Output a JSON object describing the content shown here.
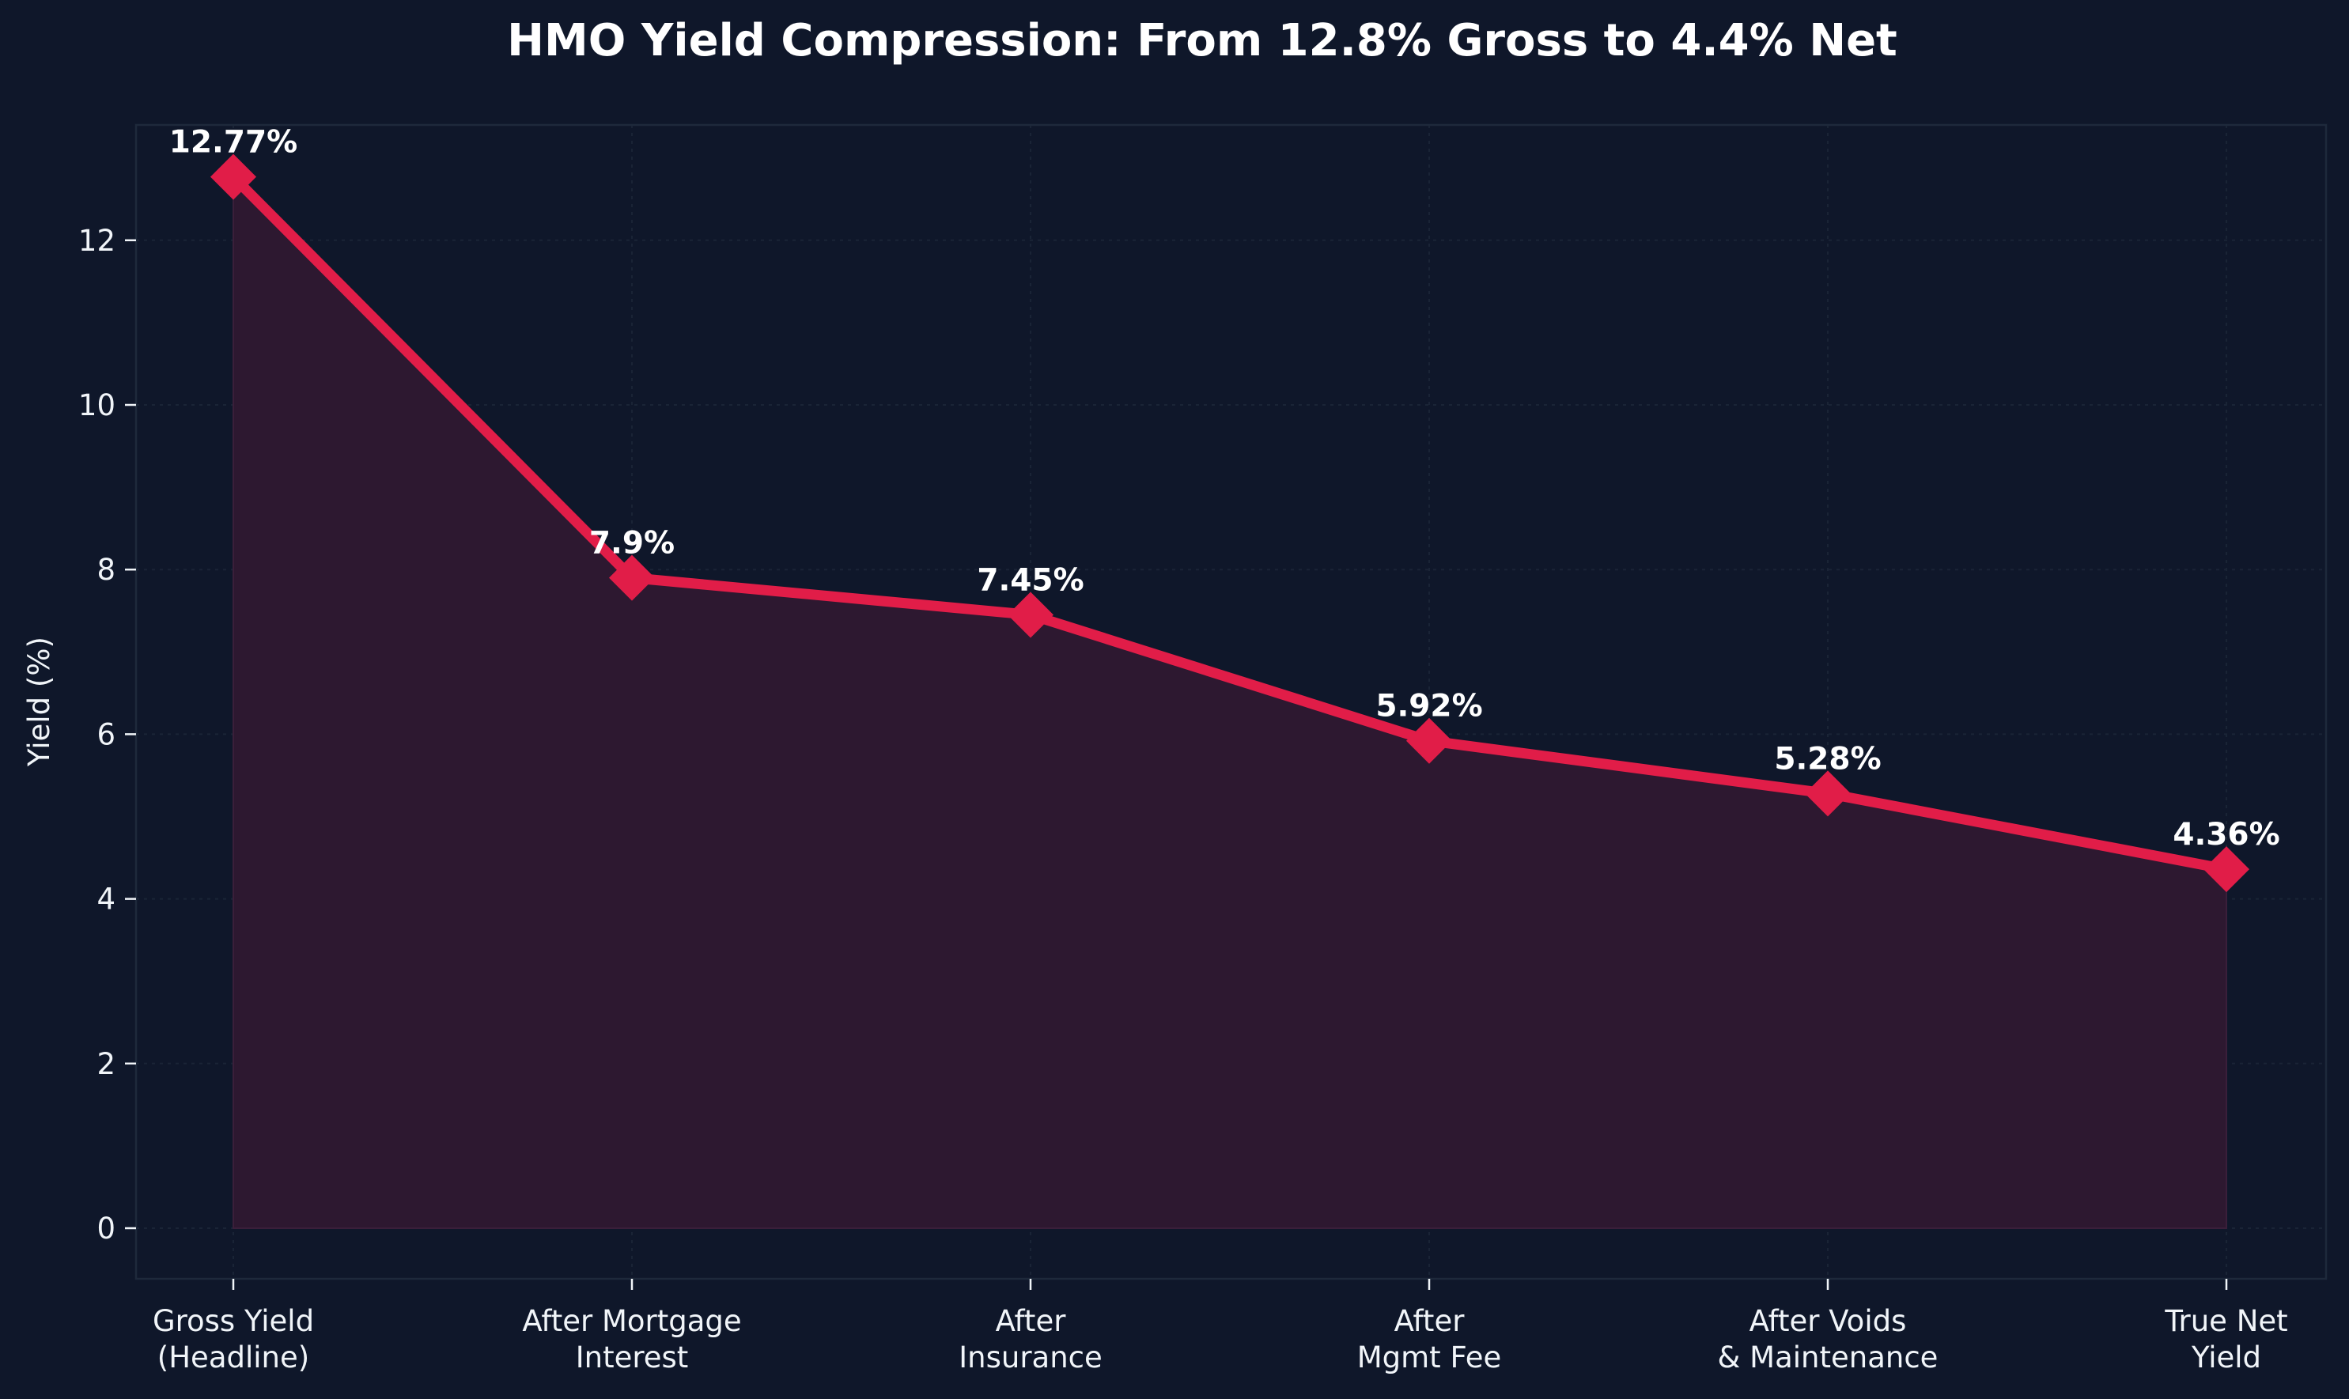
{
  "chart_data": {
    "type": "area",
    "title": "HMO Yield Compression: From 12.8% Gross to 4.4% Net",
    "xlabel": "",
    "ylabel": "Yield (%)",
    "categories": [
      [
        "Gross Yield",
        "(Headline)"
      ],
      [
        "After Mortgage",
        "Interest"
      ],
      [
        "After",
        "Insurance"
      ],
      [
        "After",
        "Mgmt Fee"
      ],
      [
        "After Voids",
        "& Maintenance"
      ],
      [
        "True Net",
        "Yield"
      ]
    ],
    "values": [
      12.77,
      7.9,
      7.45,
      5.92,
      5.28,
      4.36
    ],
    "data_labels": [
      "12.77%",
      "7.9%",
      "7.45%",
      "5.92%",
      "5.28%",
      "4.36%"
    ],
    "yticks": [
      0,
      2,
      4,
      6,
      8,
      10,
      12
    ],
    "ylim": [
      -0.64,
      13.41
    ],
    "grid": true,
    "marker": "diamond",
    "colors": {
      "background": "#0f172a",
      "line": "#e11d48",
      "fill": "#2d1830",
      "axis": "#1e293b",
      "text": "#f1f5f9"
    }
  }
}
